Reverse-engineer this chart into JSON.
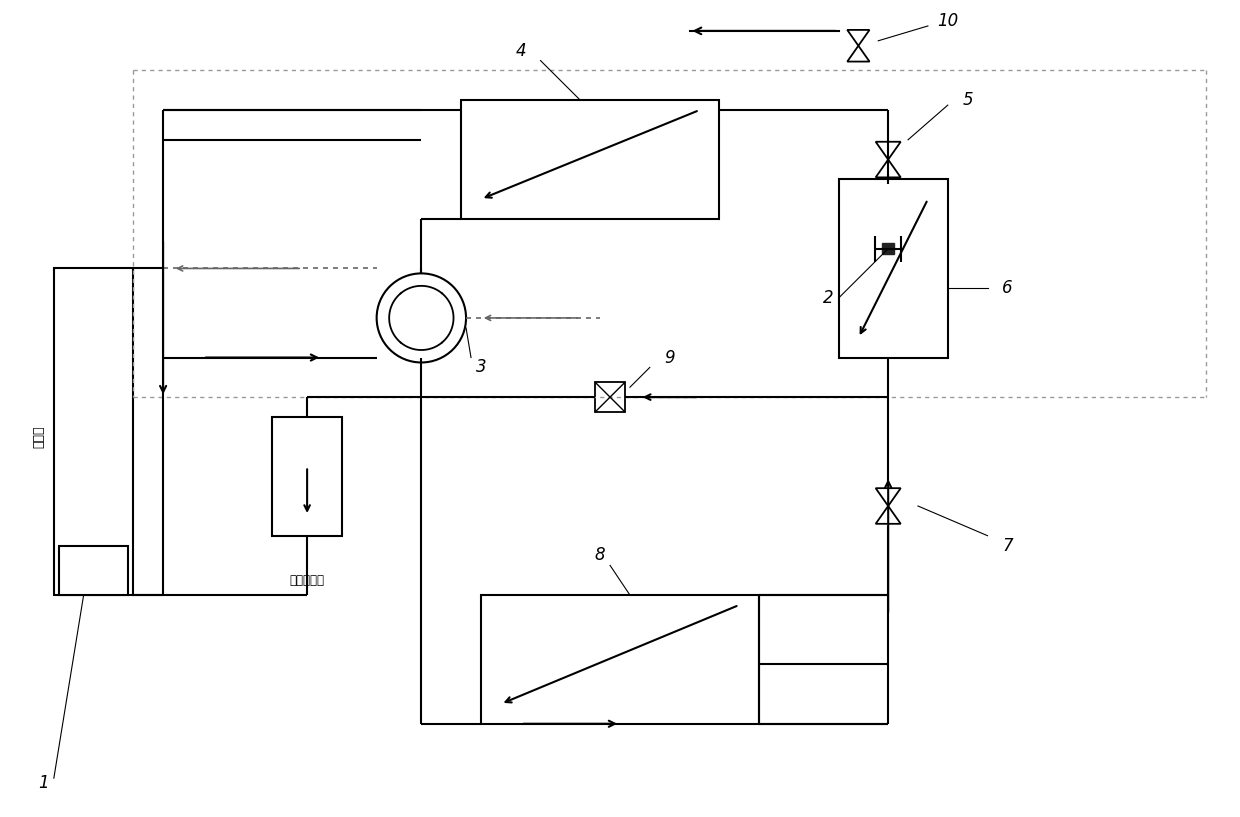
{
  "bg_color": "#ffffff",
  "lc": "#000000",
  "fig_width": 12.4,
  "fig_height": 8.17,
  "dpi": 100
}
